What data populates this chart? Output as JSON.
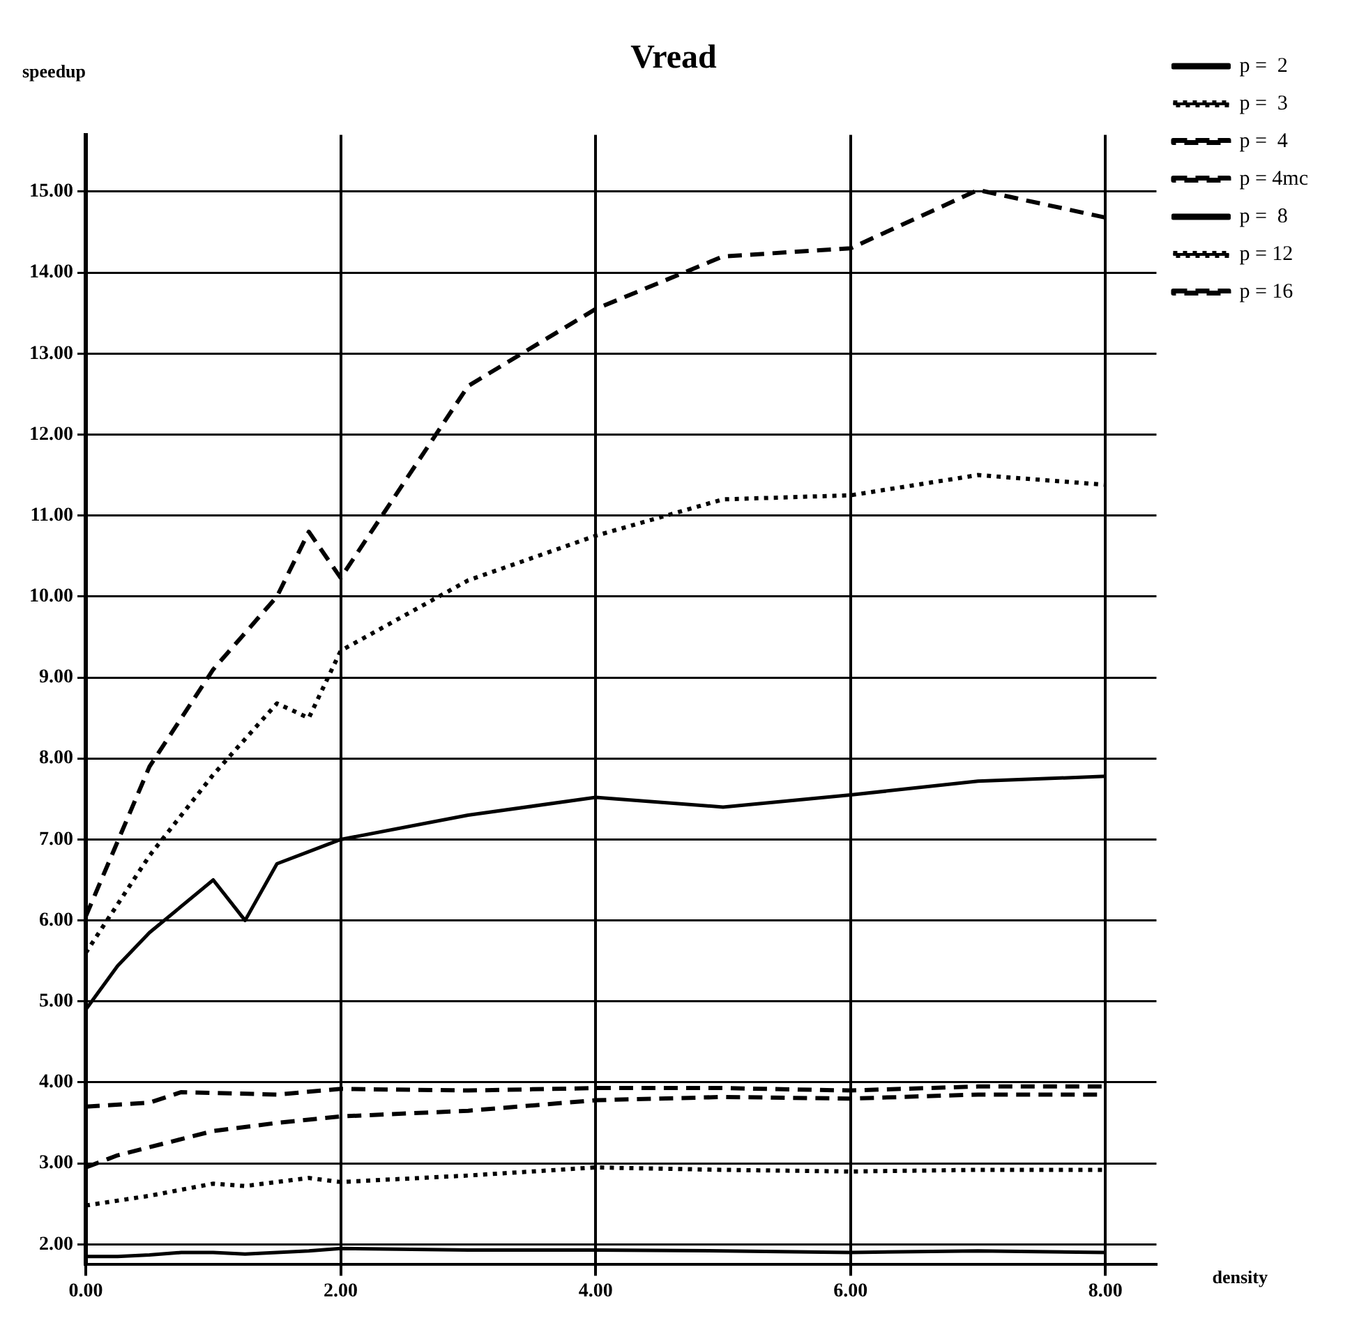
{
  "chart_data": {
    "type": "line",
    "title": "Vread",
    "xlabel": "density",
    "ylabel": "speedup",
    "xlim": [
      0,
      8.4
    ],
    "ylim": [
      1.75,
      15.7
    ],
    "xticks": [
      {
        "value": 0,
        "label": "0.00"
      },
      {
        "value": 2,
        "label": "2.00"
      },
      {
        "value": 4,
        "label": "4.00"
      },
      {
        "value": 6,
        "label": "6.00"
      },
      {
        "value": 8,
        "label": "8.00"
      }
    ],
    "yticks": [
      {
        "value": 2,
        "label": "2.00"
      },
      {
        "value": 3,
        "label": "3.00"
      },
      {
        "value": 4,
        "label": "4.00"
      },
      {
        "value": 5,
        "label": "5.00"
      },
      {
        "value": 6,
        "label": "6.00"
      },
      {
        "value": 7,
        "label": "7.00"
      },
      {
        "value": 8,
        "label": "8.00"
      },
      {
        "value": 9,
        "label": "9.00"
      },
      {
        "value": 10,
        "label": "10.00"
      },
      {
        "value": 11,
        "label": "11.00"
      },
      {
        "value": 12,
        "label": "12.00"
      },
      {
        "value": 13,
        "label": "13.00"
      },
      {
        "value": 14,
        "label": "14.00"
      },
      {
        "value": 15,
        "label": "15.00"
      }
    ],
    "grid": true,
    "legend": "top right",
    "marker": "none",
    "series": [
      {
        "name": "p =  2",
        "color": "#000000",
        "line_style": "solid",
        "x": [
          0,
          0.25,
          0.5,
          0.75,
          1,
          1.25,
          1.5,
          1.75,
          2,
          3,
          4,
          5,
          6,
          7,
          8
        ],
        "values": [
          1.85,
          1.85,
          1.87,
          1.9,
          1.9,
          1.88,
          1.9,
          1.92,
          1.95,
          1.93,
          1.93,
          1.92,
          1.9,
          1.92,
          1.9
        ]
      },
      {
        "name": "p =  3",
        "color": "#000000",
        "line_style": "dotted",
        "x": [
          0,
          0.5,
          1,
          1.25,
          1.75,
          2,
          3,
          4,
          5,
          6,
          7,
          8
        ],
        "values": [
          2.48,
          2.6,
          2.75,
          2.72,
          2.82,
          2.77,
          2.85,
          2.95,
          2.92,
          2.9,
          2.92,
          2.92
        ]
      },
      {
        "name": "p =  4",
        "color": "#000000",
        "line_style": "dashed",
        "x": [
          0,
          0.5,
          0.75,
          1,
          1.5,
          2,
          3,
          4,
          5,
          6,
          7,
          8
        ],
        "values": [
          3.7,
          3.75,
          3.88,
          3.87,
          3.85,
          3.92,
          3.9,
          3.93,
          3.93,
          3.9,
          3.95,
          3.95
        ]
      },
      {
        "name": "p = 4mc",
        "color": "#000000",
        "line_style": "dashed",
        "x": [
          0,
          0.25,
          0.5,
          1,
          1.5,
          2,
          3,
          4,
          5,
          6,
          7,
          8
        ],
        "values": [
          2.95,
          3.1,
          3.2,
          3.4,
          3.5,
          3.58,
          3.65,
          3.78,
          3.82,
          3.8,
          3.85,
          3.85
        ]
      },
      {
        "name": "p =  8",
        "color": "#000000",
        "line_style": "solid",
        "x": [
          0,
          0.25,
          0.5,
          1,
          1.25,
          1.5,
          1.75,
          2,
          3,
          4,
          5,
          6,
          7,
          8
        ],
        "values": [
          4.9,
          5.44,
          5.85,
          6.5,
          6.0,
          6.7,
          6.85,
          7.0,
          7.3,
          7.52,
          7.4,
          7.55,
          7.72,
          7.78
        ]
      },
      {
        "name": "p = 12",
        "color": "#000000",
        "line_style": "dotted",
        "x": [
          0,
          0.5,
          1,
          1.5,
          1.75,
          2,
          3,
          4,
          5,
          6,
          7,
          8
        ],
        "values": [
          5.6,
          6.8,
          7.8,
          8.68,
          8.5,
          9.33,
          10.2,
          10.75,
          11.2,
          11.25,
          11.5,
          11.38
        ]
      },
      {
        "name": "p = 16",
        "color": "#000000",
        "line_style": "dashed",
        "x": [
          0,
          0.5,
          1,
          1.5,
          1.75,
          2,
          3,
          4,
          5,
          6,
          7,
          8
        ],
        "values": [
          6.05,
          7.9,
          9.1,
          10.0,
          10.8,
          10.23,
          12.6,
          13.55,
          14.2,
          14.3,
          15.02,
          14.68
        ]
      }
    ]
  }
}
